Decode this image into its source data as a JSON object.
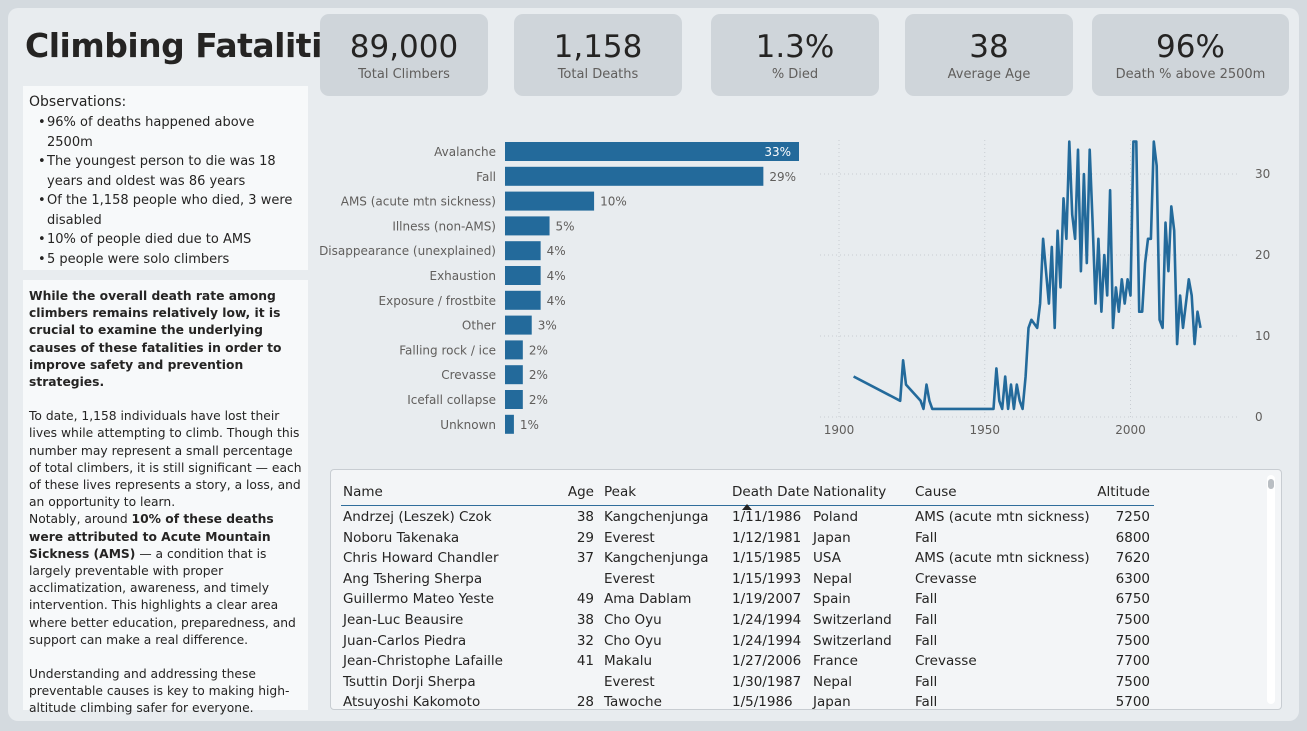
{
  "title": "Climbing Fatalities",
  "kpis": [
    {
      "value": "89,000",
      "label": "Total Climbers"
    },
    {
      "value": "1,158",
      "label": "Total Deaths"
    },
    {
      "value": "1.3%",
      "label": "% Died"
    },
    {
      "value": "38",
      "label": "Average Age"
    },
    {
      "value": "96%",
      "label": "Death % above 2500m"
    }
  ],
  "observations": {
    "title": "Observations:",
    "items": [
      "96% of deaths happened above 2500m",
      "The youngest person to die was 18 years and oldest was 86 years",
      "Of the 1,158 people who died, 3 were disabled",
      "10% of people died due to AMS",
      "5 people were solo climbers"
    ]
  },
  "narrative": {
    "intro_bold": "While the overall death rate among climbers remains relatively low, it is crucial to examine the underlying causes of these fatalities in order to improve safety and prevention strategies.",
    "p1": "To date, 1,158 individuals have lost their lives while attempting to climb. Though this number may represent a small percentage of total climbers, it is still significant — each of these lives represents a story, a loss, and an opportunity to learn.",
    "p2_pre": "Notably, around ",
    "p2_bold": "10% of these deaths were attributed to Acute Mountain Sickness (AMS)",
    "p2_post": " — a condition that is largely preventable with proper acclimatization, awareness, and timely intervention. This highlights a clear area where better education, preparedness, and support can make a real difference.",
    "p3": "Understanding and addressing these preventable causes is key to making high-altitude climbing safer for everyone."
  },
  "colors": {
    "bar": "#236a9b",
    "line": "#236a9b"
  },
  "chart_data": [
    {
      "type": "bar",
      "orientation": "horizontal",
      "categories": [
        "Avalanche",
        "Fall",
        "AMS (acute mtn sickness)",
        "Illness (non-AMS)",
        "Disappearance (unexplained)",
        "Exhaustion",
        "Exposure / frostbite",
        "Other",
        "Falling rock / ice",
        "Crevasse",
        "Icefall collapse",
        "Unknown"
      ],
      "values": [
        33,
        29,
        10,
        5,
        4,
        4,
        4,
        3,
        2,
        2,
        2,
        1
      ],
      "labels": [
        "33%",
        "29%",
        "10%",
        "5%",
        "4%",
        "4%",
        "4%",
        "3%",
        "2%",
        "2%",
        "2%",
        "1%"
      ],
      "unit": "%"
    },
    {
      "type": "line",
      "x": [
        1905,
        1921,
        1922,
        1923,
        1928,
        1929,
        1930,
        1931,
        1932,
        1953,
        1954,
        1955,
        1956,
        1957,
        1958,
        1959,
        1960,
        1961,
        1962,
        1963,
        1964,
        1965,
        1966,
        1968,
        1969,
        1970,
        1971,
        1972,
        1973,
        1974,
        1975,
        1976,
        1977,
        1978,
        1979,
        1980,
        1981,
        1982,
        1983,
        1984,
        1985,
        1986,
        1987,
        1988,
        1989,
        1990,
        1991,
        1992,
        1993,
        1994,
        1995,
        1996,
        1997,
        1998,
        1999,
        2000,
        2001,
        2002,
        2003,
        2004,
        2005,
        2006,
        2007,
        2008,
        2009,
        2010,
        2011,
        2012,
        2013,
        2014,
        2015,
        2016,
        2017,
        2018,
        2019,
        2020,
        2021,
        2022,
        2023,
        2024
      ],
      "y": [
        5,
        2,
        7,
        4,
        2,
        1,
        4,
        2,
        1,
        1,
        6,
        2,
        1,
        5,
        1,
        4,
        1,
        4,
        2,
        1,
        5,
        11,
        12,
        11,
        14,
        22,
        18,
        14,
        21,
        11,
        23,
        16,
        27,
        22,
        34,
        25,
        22,
        33,
        18,
        30,
        19,
        33,
        24,
        14,
        22,
        13,
        20,
        15,
        28,
        11,
        16,
        13,
        17,
        14,
        17,
        15,
        34,
        34,
        13,
        13,
        19,
        22,
        22,
        34,
        31,
        12,
        11,
        24,
        18,
        26,
        23,
        9,
        15,
        11,
        14,
        17,
        15,
        9,
        13,
        11
      ],
      "xticks": [
        1900,
        1950,
        2000
      ],
      "yticks": [
        0,
        10,
        20,
        30
      ],
      "xlim": [
        1900,
        2030
      ],
      "ylim": [
        0,
        34
      ],
      "grid": true
    }
  ],
  "table": {
    "columns": [
      "Name",
      "Age",
      "Peak",
      "Death Date",
      "Nationality",
      "Cause",
      "Altitude"
    ],
    "sorted_column": "Death Date",
    "rows": [
      [
        "Andrzej (Leszek) Czok",
        "38",
        "Kangchenjunga",
        "1/11/1986",
        "Poland",
        "AMS (acute mtn sickness)",
        "7250"
      ],
      [
        "Noboru Takenaka",
        "29",
        "Everest",
        "1/12/1981",
        "Japan",
        "Fall",
        "6800"
      ],
      [
        "Chris Howard Chandler",
        "37",
        "Kangchenjunga",
        "1/15/1985",
        "USA",
        "AMS (acute mtn sickness)",
        "7620"
      ],
      [
        "Ang Tshering Sherpa",
        "",
        "Everest",
        "1/15/1993",
        "Nepal",
        "Crevasse",
        "6300"
      ],
      [
        "Guillermo Mateo Yeste",
        "49",
        "Ama Dablam",
        "1/19/2007",
        "Spain",
        "Fall",
        "6750"
      ],
      [
        "Jean-Luc Beausire",
        "38",
        "Cho Oyu",
        "1/24/1994",
        "Switzerland",
        "Fall",
        "7500"
      ],
      [
        "Juan-Carlos Piedra",
        "32",
        "Cho Oyu",
        "1/24/1994",
        "Switzerland",
        "Fall",
        "7500"
      ],
      [
        "Jean-Christophe Lafaille",
        "41",
        "Makalu",
        "1/27/2006",
        "France",
        "Crevasse",
        "7700"
      ],
      [
        "Tsuttin Dorji Sherpa",
        "",
        "Everest",
        "1/30/1987",
        "Nepal",
        "Fall",
        "7500"
      ],
      [
        "Atsuyoshi Kakomoto",
        "28",
        "Tawoche",
        "1/5/1986",
        "Japan",
        "Fall",
        "5700"
      ]
    ]
  }
}
